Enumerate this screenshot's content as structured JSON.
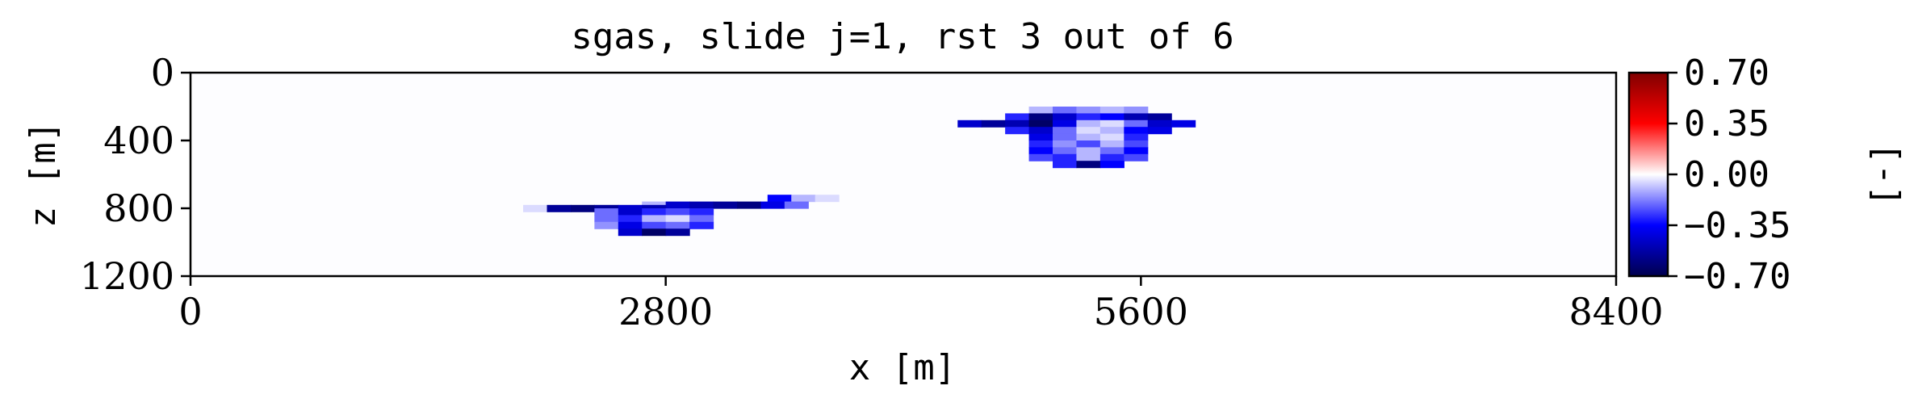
{
  "chart_data": {
    "type": "heatmap",
    "title": "sgas, slide j=1, rst 3 out of 6",
    "xlabel": "x [m]",
    "ylabel": "z [m]",
    "xlim": [
      0,
      8400
    ],
    "ylim": [
      0,
      1200
    ],
    "y_inverted": true,
    "x_ticks": [
      "0",
      "2800",
      "5600",
      "8400"
    ],
    "y_ticks": [
      "0",
      "400",
      "800",
      "1200"
    ],
    "background_value": 0.0,
    "colorbar": {
      "label": "[-]",
      "range": [
        -0.7,
        0.7
      ],
      "ticks": [
        "0.70",
        "0.35",
        "0.00",
        "−0.35",
        "−0.70"
      ],
      "colormap": "seismic",
      "colors": [
        "#00004d",
        "#0000ff",
        "#ffffff",
        "#ff0000",
        "#800000"
      ]
    },
    "regions": [
      {
        "name": "left plume",
        "cell_width": 140,
        "cell_height": 40,
        "rows": [
          {
            "z": 720,
            "cells": [
              [
                3400,
                -0.35
              ],
              [
                3540,
                -0.1
              ],
              [
                3680,
                -0.05
              ]
            ]
          },
          {
            "z": 760,
            "cells": [
              [
                2660,
                -0.1
              ],
              [
                2800,
                -0.45
              ],
              [
                2940,
                -0.5
              ],
              [
                3080,
                -0.55
              ],
              [
                3220,
                -0.6
              ],
              [
                3360,
                -0.4
              ],
              [
                3500,
                -0.2
              ]
            ]
          },
          {
            "z": 780,
            "cells": [
              [
                1960,
                -0.05
              ],
              [
                2100,
                -0.55
              ],
              [
                2240,
                -0.6
              ],
              [
                2380,
                -0.55
              ],
              [
                2520,
                -0.45
              ],
              [
                2660,
                -0.5
              ]
            ]
          },
          {
            "z": 800,
            "cells": [
              [
                2380,
                -0.2
              ],
              [
                2520,
                -0.45
              ],
              [
                2660,
                -0.3
              ],
              [
                2800,
                -0.25
              ],
              [
                2940,
                -0.3
              ]
            ]
          },
          {
            "z": 840,
            "cells": [
              [
                2380,
                -0.2
              ],
              [
                2520,
                -0.3
              ],
              [
                2660,
                -0.1
              ],
              [
                2800,
                -0.05
              ],
              [
                2940,
                -0.2
              ]
            ]
          },
          {
            "z": 880,
            "cells": [
              [
                2380,
                -0.15
              ],
              [
                2520,
                -0.4
              ],
              [
                2660,
                -0.25
              ],
              [
                2800,
                -0.2
              ],
              [
                2940,
                -0.3
              ]
            ]
          },
          {
            "z": 920,
            "cells": [
              [
                2520,
                -0.45
              ],
              [
                2660,
                -0.65
              ],
              [
                2800,
                -0.55
              ]
            ]
          }
        ]
      },
      {
        "name": "right plume",
        "cell_width": 140,
        "cell_height": 40,
        "rows": [
          {
            "z": 200,
            "cells": [
              [
                4940,
                -0.1
              ],
              [
                5080,
                -0.2
              ],
              [
                5220,
                -0.15
              ],
              [
                5360,
                -0.1
              ],
              [
                5500,
                -0.15
              ]
            ]
          },
          {
            "z": 240,
            "cells": [
              [
                4800,
                -0.3
              ],
              [
                4940,
                -0.6
              ],
              [
                5080,
                -0.45
              ],
              [
                5220,
                -0.3
              ],
              [
                5360,
                -0.35
              ],
              [
                5500,
                -0.5
              ],
              [
                5640,
                -0.55
              ]
            ]
          },
          {
            "z": 280,
            "cells": [
              [
                4520,
                -0.45
              ],
              [
                4660,
                -0.55
              ],
              [
                4800,
                -0.5
              ],
              [
                4940,
                -0.65
              ],
              [
                5080,
                -0.4
              ],
              [
                5220,
                -0.1
              ],
              [
                5360,
                -0.05
              ],
              [
                5500,
                -0.2
              ],
              [
                5640,
                -0.45
              ],
              [
                5780,
                -0.4
              ]
            ]
          },
          {
            "z": 320,
            "cells": [
              [
                4800,
                -0.3
              ],
              [
                4940,
                -0.45
              ],
              [
                5080,
                -0.2
              ],
              [
                5220,
                -0.05
              ],
              [
                5360,
                -0.1
              ],
              [
                5500,
                -0.35
              ],
              [
                5640,
                -0.4
              ]
            ]
          },
          {
            "z": 360,
            "cells": [
              [
                4940,
                -0.4
              ],
              [
                5080,
                -0.2
              ],
              [
                5220,
                -0.1
              ],
              [
                5360,
                -0.05
              ],
              [
                5500,
                -0.3
              ]
            ]
          },
          {
            "z": 400,
            "cells": [
              [
                4940,
                -0.3
              ],
              [
                5080,
                -0.15
              ],
              [
                5220,
                -0.25
              ],
              [
                5360,
                -0.1
              ],
              [
                5500,
                -0.25
              ]
            ]
          },
          {
            "z": 440,
            "cells": [
              [
                4940,
                -0.35
              ],
              [
                5080,
                -0.2
              ],
              [
                5220,
                -0.1
              ],
              [
                5360,
                -0.2
              ],
              [
                5500,
                -0.35
              ]
            ]
          },
          {
            "z": 480,
            "cells": [
              [
                4940,
                -0.25
              ],
              [
                5080,
                -0.3
              ],
              [
                5220,
                -0.1
              ],
              [
                5360,
                -0.3
              ],
              [
                5500,
                -0.25
              ]
            ]
          },
          {
            "z": 520,
            "cells": [
              [
                5080,
                -0.3
              ],
              [
                5220,
                -0.6
              ],
              [
                5360,
                -0.35
              ]
            ]
          }
        ]
      }
    ]
  }
}
